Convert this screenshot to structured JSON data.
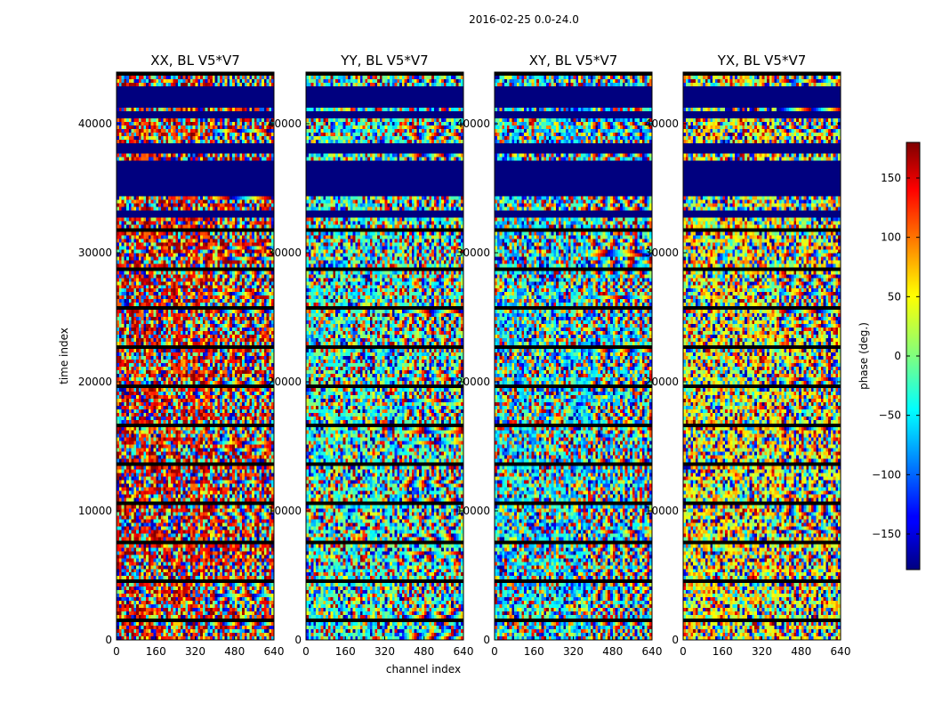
{
  "chart_data": {
    "type": "heatmap",
    "suptitle": "2016-02-25 0.0-24.0",
    "xlabel": "channel index",
    "ylabel": "time index",
    "xlim": [
      0,
      640
    ],
    "ylim": [
      0,
      44000
    ],
    "xticks": [
      0,
      160,
      320,
      480,
      640
    ],
    "yticks": [
      0,
      10000,
      20000,
      30000,
      40000
    ],
    "colormap": "jet",
    "panels": [
      {
        "title": "XX, BL V5*V7",
        "polarization": "XX"
      },
      {
        "title": "YY, BL V5*V7",
        "polarization": "YY"
      },
      {
        "title": "XY, BL V5*V7",
        "polarization": "XY"
      },
      {
        "title": "YX, BL V5*V7",
        "polarization": "YX"
      }
    ],
    "colorbar": {
      "label": "phase (deg.)",
      "range": [
        -180,
        180
      ],
      "ticks": [
        150,
        100,
        50,
        0,
        -50,
        -100,
        -150
      ],
      "tick_labels": [
        "150",
        "100",
        "50",
        "0",
        "−50",
        "−100",
        "−150"
      ]
    },
    "blank_bands": [
      [
        32800,
        33400
      ],
      [
        34500,
        37000
      ],
      [
        37800,
        38400
      ],
      [
        40500,
        40900
      ],
      [
        41200,
        43000
      ]
    ],
    "colors": {
      "blank": "#00007f",
      "frame": "#000000",
      "background": "#ffffff"
    }
  }
}
